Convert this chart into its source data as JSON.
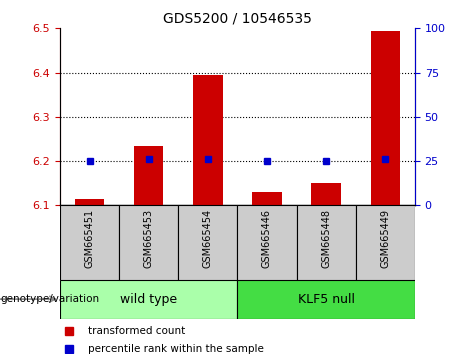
{
  "title": "GDS5200 / 10546535",
  "samples": [
    "GSM665451",
    "GSM665453",
    "GSM665454",
    "GSM665446",
    "GSM665448",
    "GSM665449"
  ],
  "transformed_counts": [
    6.115,
    6.235,
    6.395,
    6.13,
    6.15,
    6.495
  ],
  "percentile_ranks": [
    25,
    26,
    26,
    25,
    25,
    26
  ],
  "ylim_left": [
    6.1,
    6.5
  ],
  "ylim_right": [
    0,
    100
  ],
  "yticks_left": [
    6.1,
    6.2,
    6.3,
    6.4,
    6.5
  ],
  "yticks_right": [
    0,
    25,
    50,
    75,
    100
  ],
  "bar_color": "#cc0000",
  "dot_color": "#0000cc",
  "bar_bottom": 6.1,
  "wild_type_label": "wild type",
  "klf5_null_label": "KLF5 null",
  "genotype_label": "genotype/variation",
  "legend_bar_label": "transformed count",
  "legend_dot_label": "percentile rank within the sample",
  "tick_color_left": "#cc0000",
  "tick_color_right": "#0000cc",
  "sample_box_color": "#cccccc",
  "wild_type_box_color": "#aaffaa",
  "klf5_null_box_color": "#44dd44",
  "bar_width": 0.5,
  "figsize": [
    4.61,
    3.54
  ],
  "dpi": 100
}
